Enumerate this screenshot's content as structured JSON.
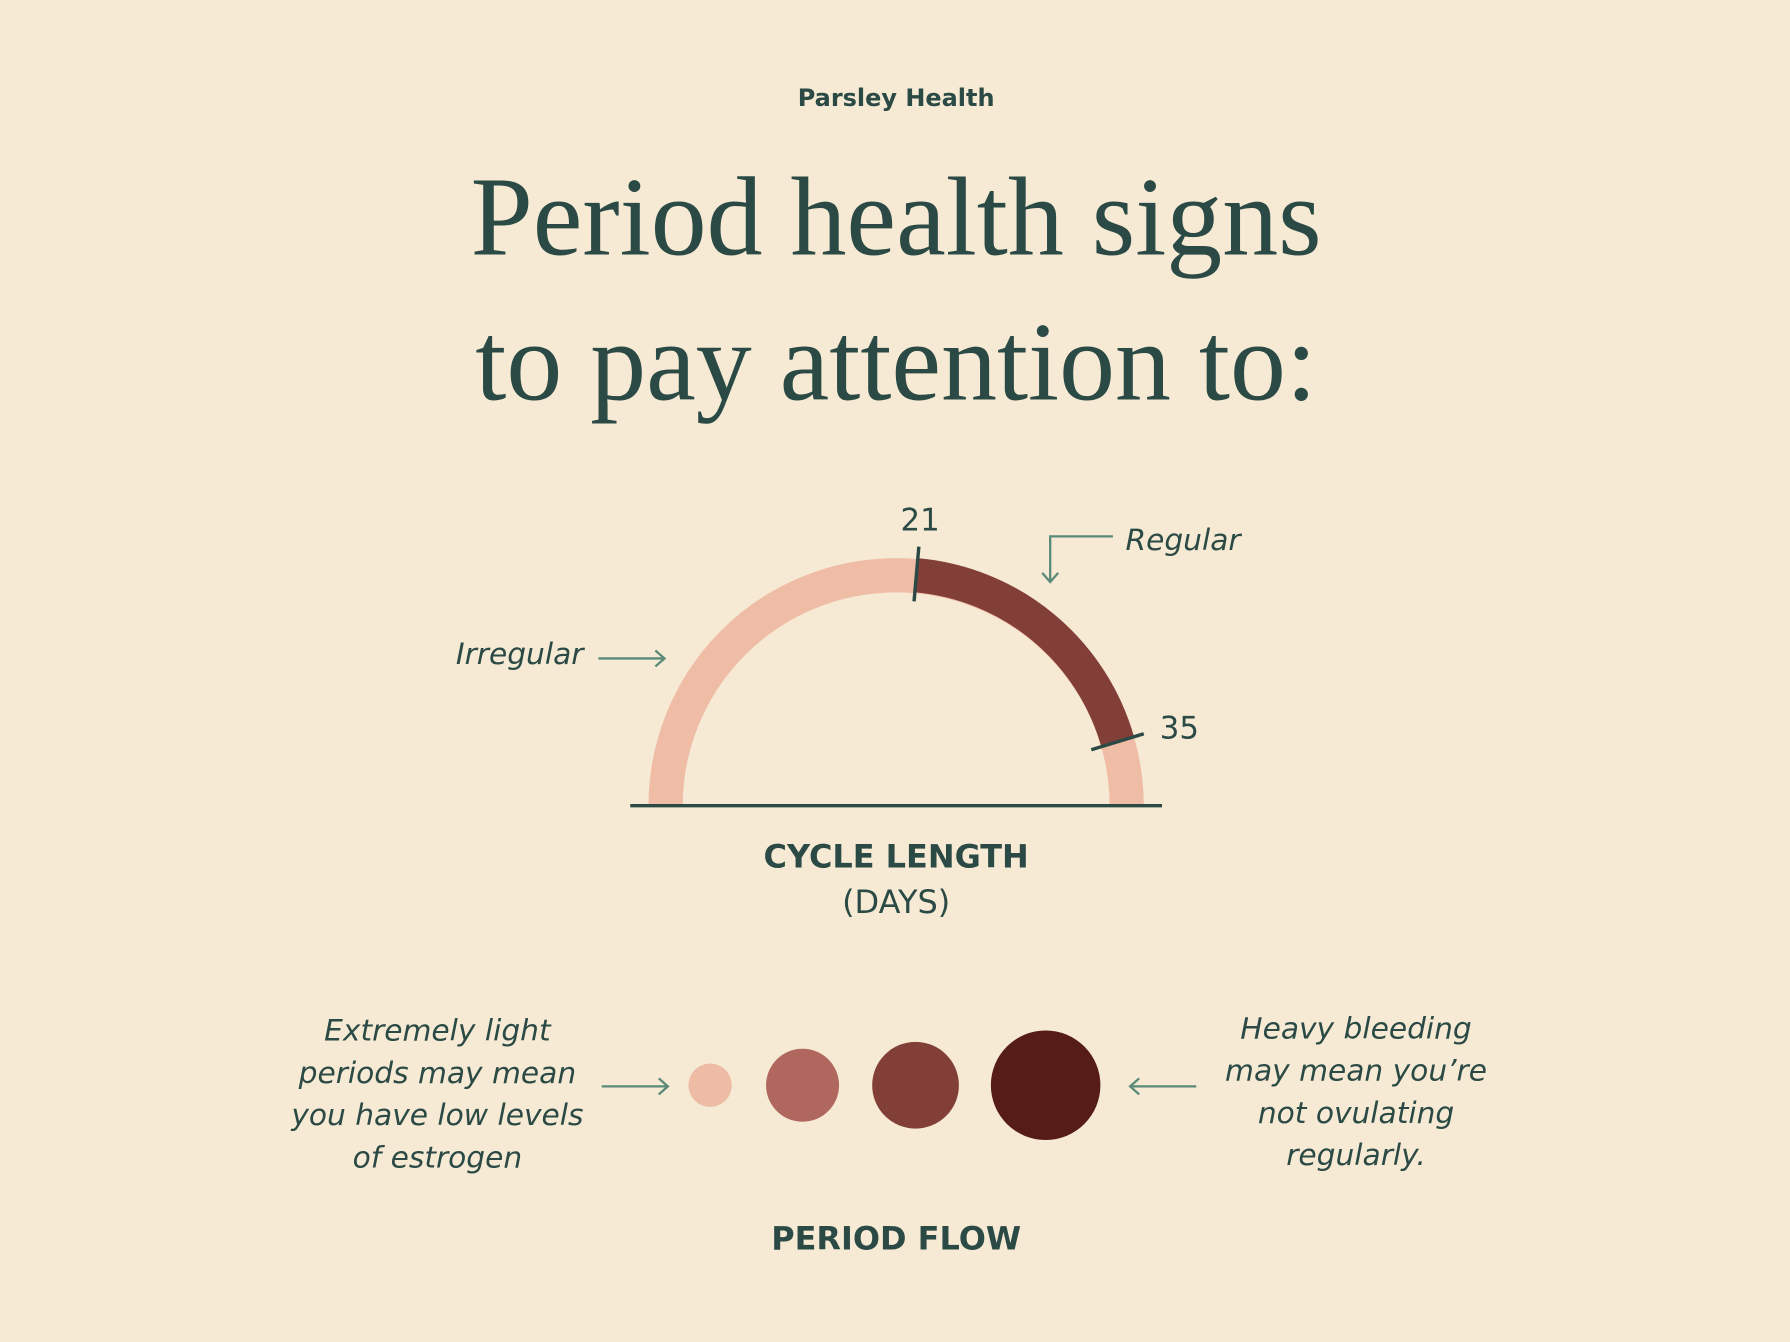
{
  "brand": "Parsley Health",
  "title": [
    "Period health signs",
    "to pay attention to:"
  ],
  "cycle": {
    "tick_start": "21",
    "tick_end": "35",
    "irregular": "Irregular",
    "regular": "Regular",
    "label": "CYCLE LENGTH",
    "unit": "(DAYS)"
  },
  "flow": {
    "light_note": [
      "Extremely light",
      "periods may mean",
      "you have low levels",
      "of estrogen"
    ],
    "heavy_note": [
      "Heavy bleeding",
      "may mean you’re",
      "not ovulating",
      "regularly."
    ],
    "label": "PERIOD FLOW"
  }
}
